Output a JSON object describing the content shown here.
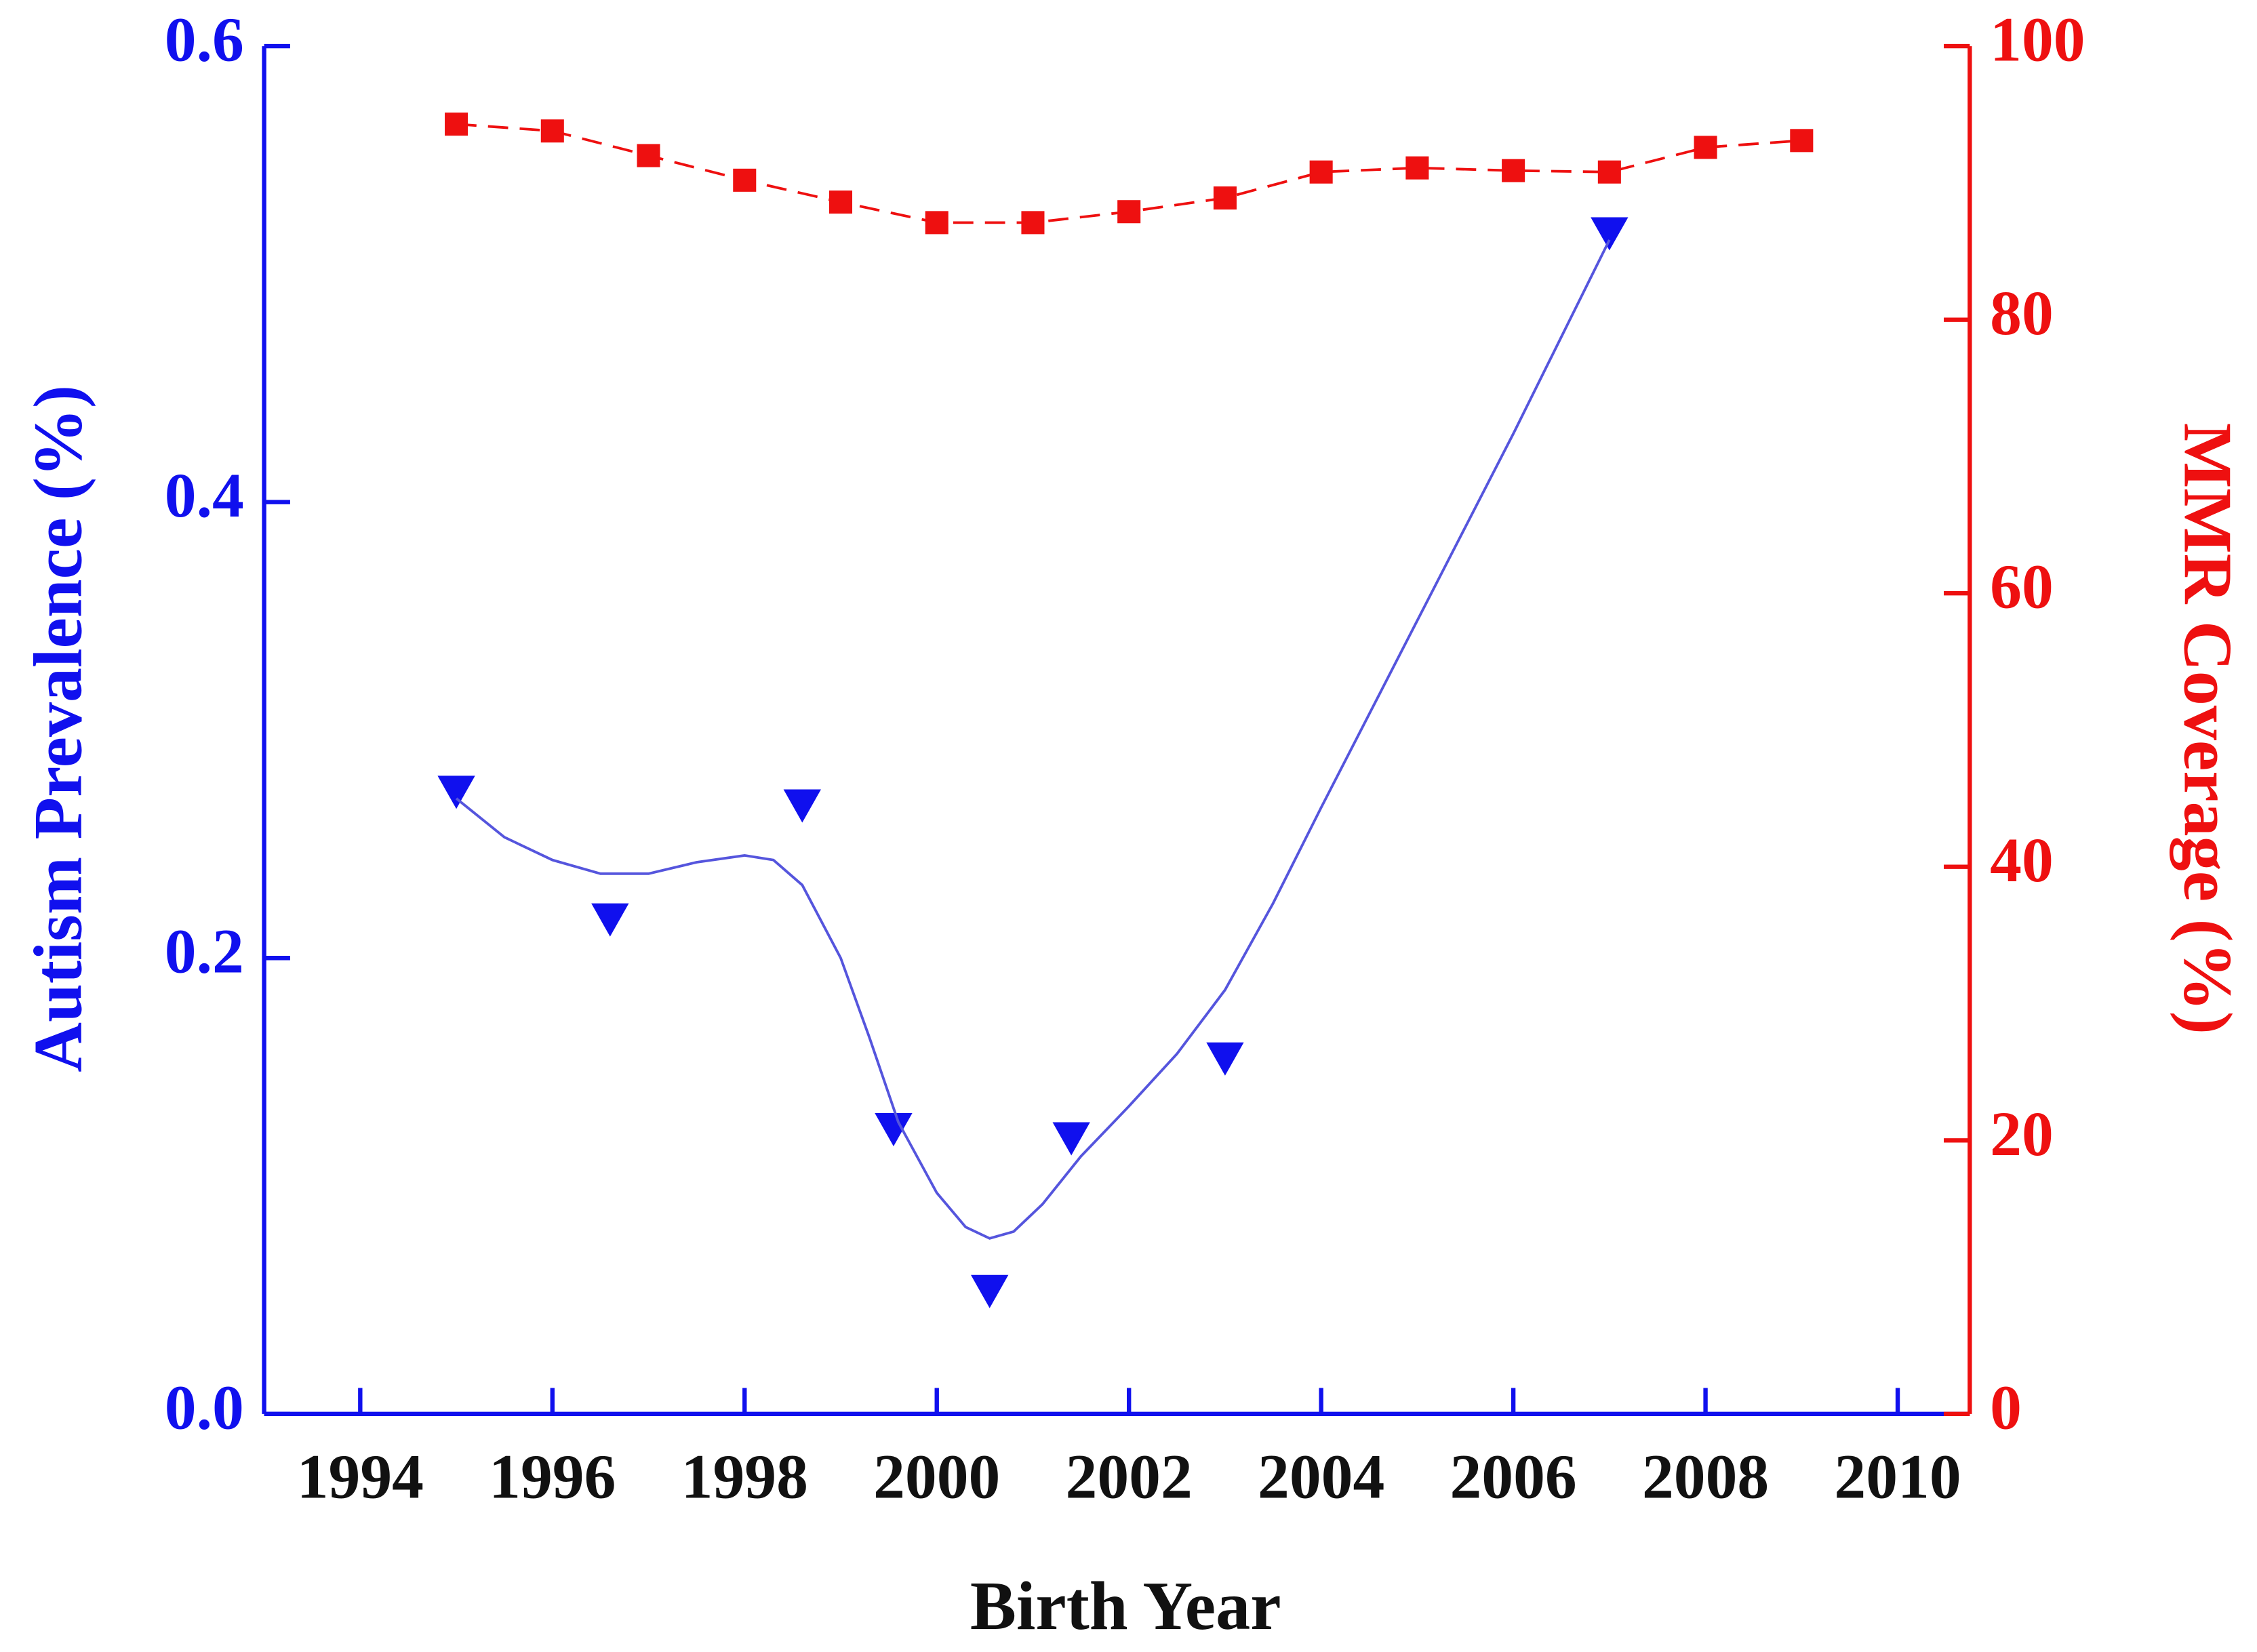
{
  "chart_data": {
    "type": "line",
    "xlabel": "Birth Year",
    "ylabel": "Autism Prevalence (%)",
    "y2label": "MMR Coverage (%)",
    "xlim": [
      1993,
      2010.75
    ],
    "xticks": [
      1994,
      1996,
      1998,
      2000,
      2002,
      2004,
      2006,
      2008,
      2010
    ],
    "ylim": [
      0,
      0.6
    ],
    "yticks": [
      {
        "value": 0,
        "label": "0.0"
      },
      0.2,
      0.4,
      0.6
    ],
    "y2lim": [
      0,
      100
    ],
    "y2ticks": [
      0,
      20,
      40,
      60,
      80,
      100
    ],
    "ycolor": "#1010ee",
    "y2color": "#ee1010",
    "series": [
      {
        "color": "#1010ee",
        "marker": "triangle-down",
        "line": "none",
        "x": [
          1995,
          1996.6,
          1998.6,
          1999.55,
          2000.55,
          2001.4,
          2003,
          2007
        ],
        "values": [
          0.273,
          0.217,
          0.267,
          0.125,
          0.054,
          0.121,
          0.156,
          0.518
        ]
      },
      {
        "color": "#5555dd",
        "marker": "none",
        "line": "solid",
        "x": [
          1995,
          1995.5,
          1996,
          1996.5,
          1997,
          1997.5,
          1998,
          1998.3,
          1998.6,
          1999,
          1999.3,
          1999.6,
          2000,
          2000.3,
          2000.55,
          2000.8,
          2001.1,
          2001.5,
          2002,
          2002.5,
          2003,
          2003.5,
          2004,
          2005,
          2006,
          2007
        ],
        "values": [
          0.27,
          0.253,
          0.243,
          0.237,
          0.237,
          0.242,
          0.245,
          0.243,
          0.232,
          0.2,
          0.165,
          0.128,
          0.097,
          0.082,
          0.077,
          0.08,
          0.092,
          0.113,
          0.135,
          0.158,
          0.186,
          0.224,
          0.266,
          0.348,
          0.43,
          0.515
        ]
      },
      {
        "color": "#ee1010",
        "marker": "square",
        "line": "dashed",
        "axis": "y2",
        "x": [
          1995,
          1996,
          1997,
          1998,
          1999,
          2000,
          2001,
          2002,
          2003,
          2004,
          2005,
          2006,
          2007,
          2008,
          2009
        ],
        "values": [
          94.3,
          93.8,
          92.0,
          90.2,
          88.6,
          87.1,
          87.1,
          87.9,
          88.9,
          90.8,
          91.1,
          90.9,
          90.8,
          92.6,
          93.1
        ]
      }
    ]
  }
}
